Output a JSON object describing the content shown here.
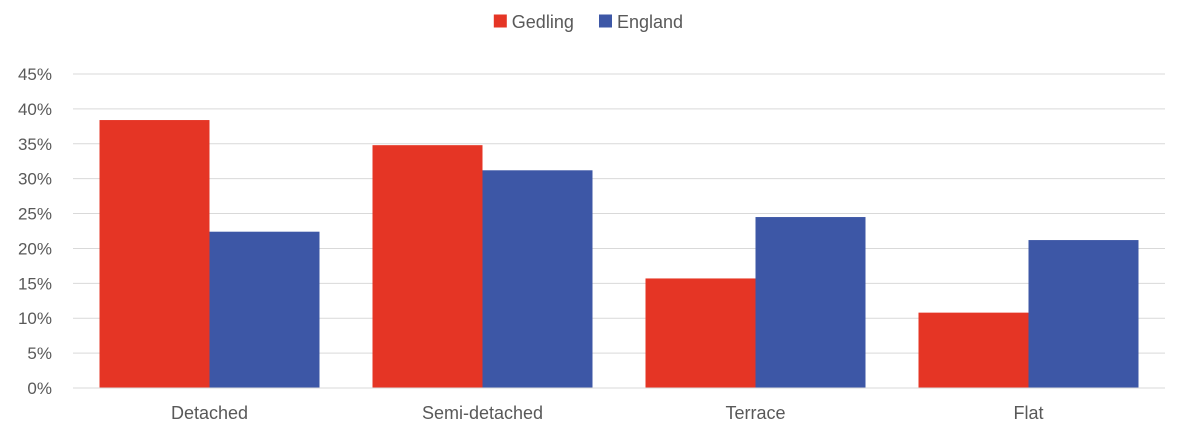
{
  "chart_data": {
    "type": "bar",
    "title": "",
    "xlabel": "",
    "ylabel": "",
    "categories": [
      "Detached",
      "Semi-detached",
      "Terrace",
      "Flat"
    ],
    "series": [
      {
        "name": "Gedling",
        "color": "#E53525",
        "values": [
          0.384,
          0.348,
          0.157,
          0.108
        ]
      },
      {
        "name": "England",
        "color": "#3D57A6",
        "values": [
          0.224,
          0.312,
          0.245,
          0.212
        ]
      }
    ],
    "ylim": [
      0,
      0.45
    ],
    "yticks": [
      0,
      0.05,
      0.1,
      0.15,
      0.2,
      0.25,
      0.3,
      0.35,
      0.4,
      0.45
    ],
    "ytick_labels": [
      "0%",
      "5%",
      "10%",
      "15%",
      "20%",
      "25%",
      "30%",
      "35%",
      "40%",
      "45%"
    ],
    "grid": true,
    "legend_position": "top-center"
  }
}
